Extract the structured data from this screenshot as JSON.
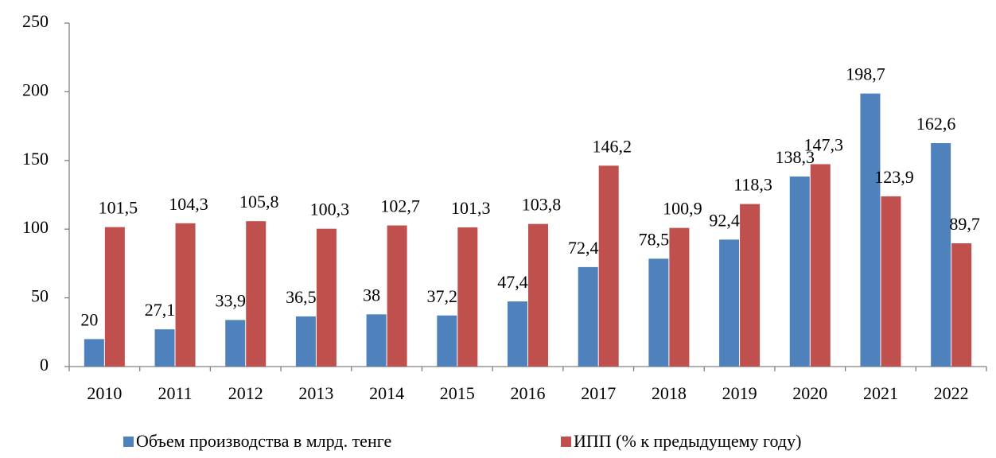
{
  "chart_data": {
    "type": "bar",
    "categories": [
      "2010",
      "2011",
      "2012",
      "2013",
      "2014",
      "2015",
      "2016",
      "2017",
      "2018",
      "2019",
      "2020",
      "2021",
      "2022"
    ],
    "series": [
      {
        "name": "Объем производства в млрд. тенге",
        "color": "#4f81bd",
        "values": [
          20,
          27.1,
          33.9,
          36.5,
          38,
          37.2,
          47.4,
          72.4,
          78.5,
          92.4,
          138.3,
          198.7,
          162.6
        ],
        "value_labels": [
          "20",
          "27,1",
          "33,9",
          "36,5",
          "38",
          "37,2",
          "47,4",
          "72,4",
          "78,5",
          "92,4",
          "138,3",
          "198,7",
          "162,6"
        ]
      },
      {
        "name": "ИПП (% к предыдущему году)",
        "color": "#c0504d",
        "values": [
          101.5,
          104.3,
          105.8,
          100.3,
          102.7,
          101.3,
          103.8,
          146.2,
          100.9,
          118.3,
          147.3,
          123.9,
          89.7
        ],
        "value_labels": [
          "101,5",
          "104,3",
          "105,8",
          "100,3",
          "102,7",
          "101,3",
          "103,8",
          "146,2",
          "100,9",
          "118,3",
          "147,3",
          "123,9",
          "89,7"
        ]
      }
    ],
    "ylim": [
      0,
      250
    ],
    "yticks": [
      0,
      50,
      100,
      150,
      200,
      250
    ],
    "grid": false,
    "legend": "bottom"
  }
}
